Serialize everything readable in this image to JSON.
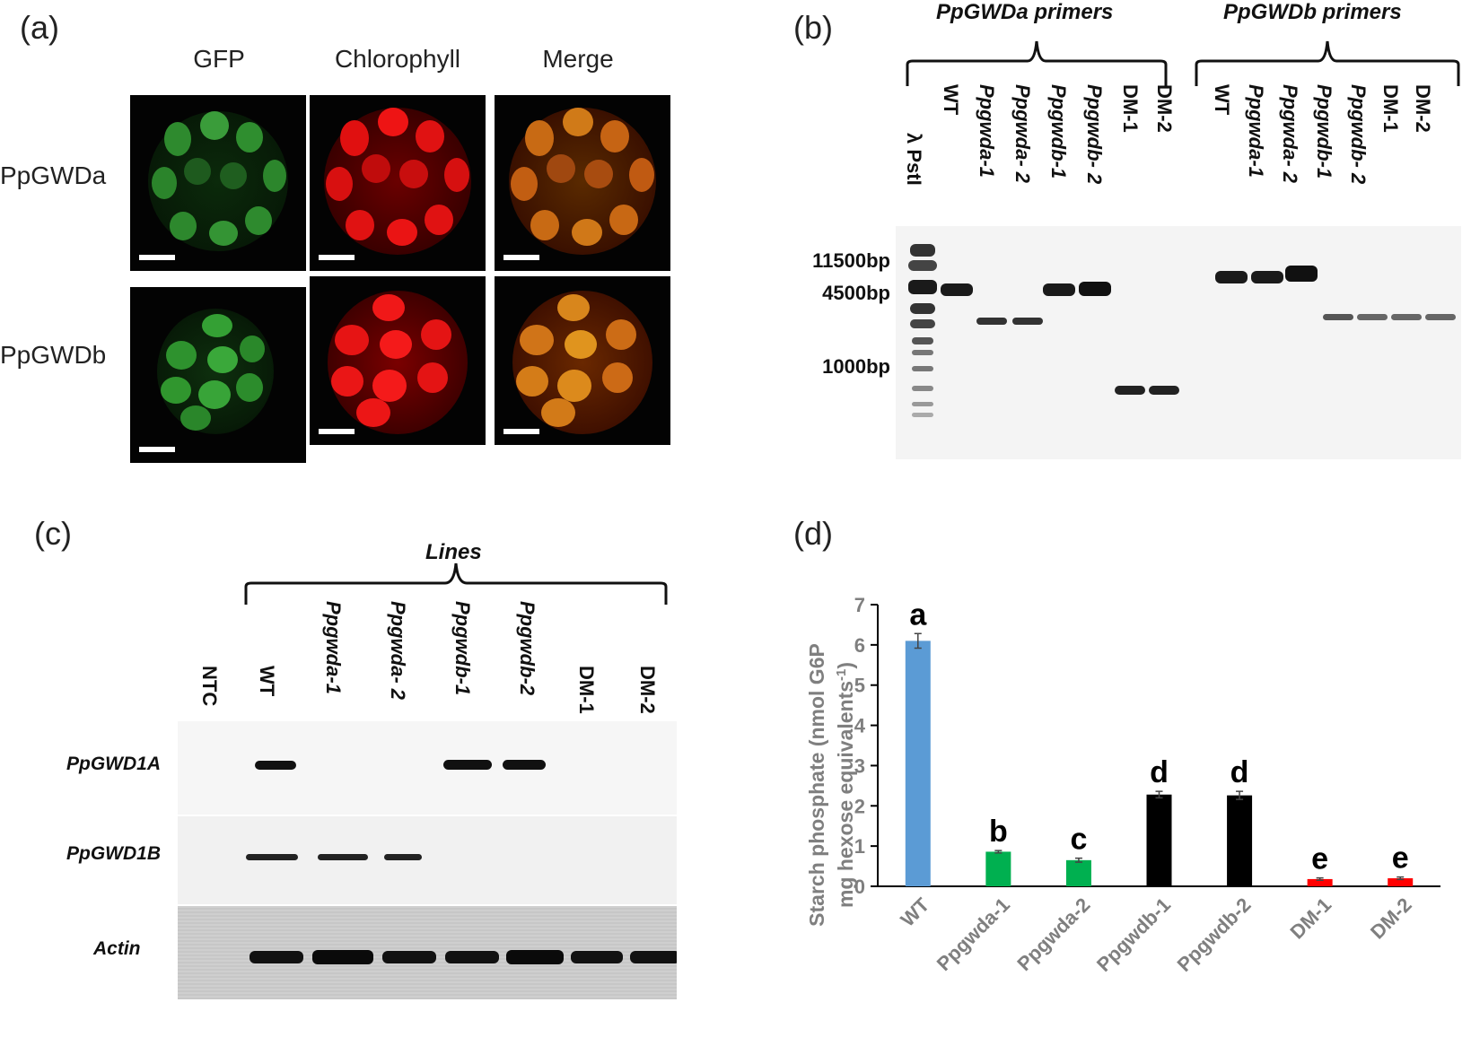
{
  "panels": {
    "a": {
      "label": "(a)",
      "columns": [
        "GFP",
        "Chlorophyll",
        "Merge"
      ],
      "rows": [
        "PpGWDa",
        "PpGWDb"
      ]
    },
    "b": {
      "label": "(b)",
      "group_titles": [
        "PpGWDa primers",
        "PpGWDb primers"
      ],
      "marker_label": "λ PstI",
      "lanes_a": [
        "WT",
        "Ppgwda-1",
        "Ppgwda- 2",
        "Ppgwdb-1",
        "Ppgwdb- 2",
        "DM-1",
        "DM-2"
      ],
      "lanes_b": [
        "WT",
        "Ppgwda-1",
        "Ppgwda- 2",
        "Ppgwdb-1",
        "Ppgwdb- 2",
        "DM-1",
        "DM-2"
      ],
      "size_markers": [
        "11500bp",
        "4500bp",
        "1000bp"
      ]
    },
    "c": {
      "label": "(c)",
      "group_title": "Lines",
      "lanes": [
        "NTC",
        "WT",
        "Ppgwda-1",
        "Ppgwda- 2",
        "Ppgwdb-1",
        "Ppgwdb-2",
        "DM-1",
        "DM-2"
      ],
      "genes": [
        "PpGWD1A",
        "PpGWD1B",
        "Actin"
      ]
    },
    "d": {
      "label": "(d)"
    }
  },
  "chart_data": {
    "type": "bar",
    "categories": [
      "WT",
      "Ppgwda-1",
      "Ppgwda-2",
      "Ppgwdb-1",
      "Ppgwdb-2",
      "DM-1",
      "DM-2"
    ],
    "values": [
      6.1,
      0.86,
      0.65,
      2.28,
      2.26,
      0.18,
      0.2
    ],
    "errors": [
      0.18,
      0.03,
      0.05,
      0.08,
      0.1,
      0.03,
      0.03
    ],
    "significance_letters": [
      "a",
      "b",
      "c",
      "d",
      "d",
      "e",
      "e"
    ],
    "bar_colors": [
      "#5b9bd5",
      "#00b050",
      "#00b050",
      "#000000",
      "#000000",
      "#ff0000",
      "#ff0000"
    ],
    "ylabel_line1": "Starch phosphate (nmol G6P",
    "ylabel_line2": "mg hexose equivalents",
    "ylabel_sup": "-1",
    "ylabel_close": ")",
    "ylim": [
      0,
      7
    ],
    "yticks": [
      "0",
      "1",
      "2",
      "3",
      "4",
      "5",
      "6",
      "7"
    ],
    "grid": false,
    "legend": "none"
  }
}
